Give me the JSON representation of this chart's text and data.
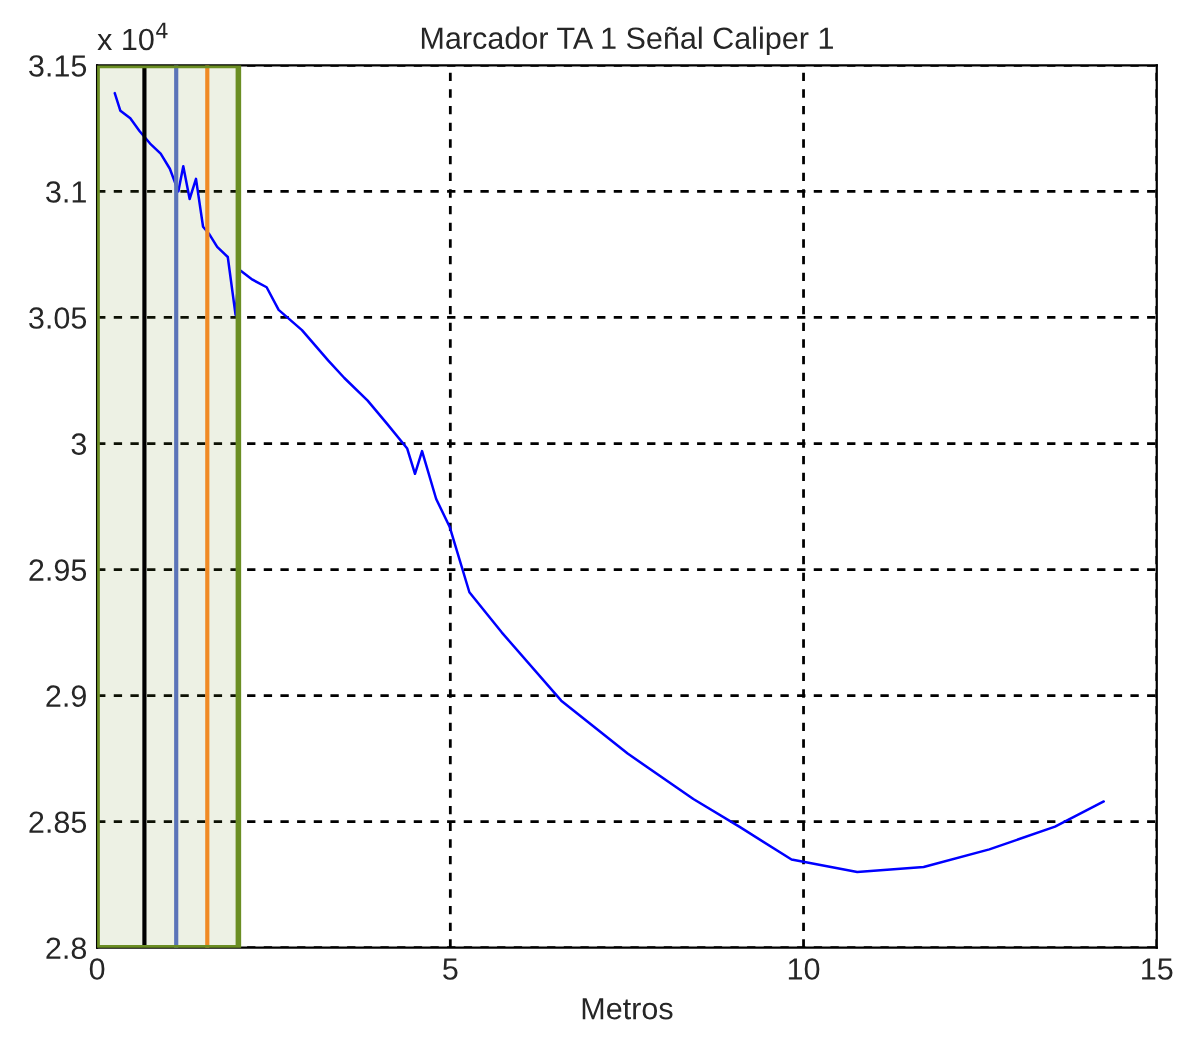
{
  "chart_data": {
    "type": "line",
    "title": "Marcador TA 1 Señal Caliper 1",
    "xlabel": "Metros",
    "annotations": [
      "x 10$^{4}$"
    ],
    "series": [
      {
        "color": "#0000ff",
        "x": [
          0.25,
          0.33,
          0.47,
          0.6,
          0.75,
          0.9,
          1.03,
          1.15,
          1.22,
          1.31,
          1.4,
          1.5,
          1.59,
          1.7,
          1.85,
          1.96,
          2.01,
          2.2,
          2.4,
          2.57,
          2.9,
          3.27,
          3.5,
          3.83,
          4.1,
          4.39,
          4.5,
          4.6,
          4.8,
          4.99,
          5.27,
          5.73,
          6.57,
          7.51,
          8.44,
          9.09,
          9.83,
          10.76,
          11.7,
          12.63,
          13.56,
          14.25
        ],
        "values": [
          3.139,
          3.132,
          3.129,
          3.124,
          3.119,
          3.115,
          3.109,
          3.1,
          3.11,
          3.097,
          3.105,
          3.086,
          3.083,
          3.078,
          3.074,
          3.051,
          3.069,
          3.065,
          3.062,
          3.053,
          3.045,
          3.033,
          3.026,
          3.017,
          3.008,
          2.998,
          2.988,
          2.997,
          2.978,
          2.967,
          2.941,
          2.925,
          2.898,
          2.877,
          2.859,
          2.848,
          2.835,
          2.83,
          2.832,
          2.839,
          2.848,
          2.858
        ]
      }
    ],
    "xlim": [
      0,
      15
    ],
    "ylim": [
      2.8,
      3.15
    ],
    "xticks": [
      0,
      5,
      10,
      15
    ],
    "yticks": [
      2.8,
      2.85,
      2.9,
      2.95,
      3,
      3.05,
      3.1,
      3.15
    ],
    "grid": true,
    "line_style": "solid",
    "marker": "none",
    "ref_lines": [
      {
        "axis": "x",
        "value": 0.67,
        "color": "#000000",
        "line_style": "solid"
      },
      {
        "axis": "x",
        "value": 1.12,
        "color": "#5b74b8",
        "line_style": "solid"
      },
      {
        "axis": "x",
        "value": 1.56,
        "color": "#f08a24",
        "line_style": "solid"
      }
    ],
    "bands": [
      {
        "axis": "x",
        "from": 0,
        "to": 2,
        "color": "#6b8e23"
      }
    ]
  }
}
